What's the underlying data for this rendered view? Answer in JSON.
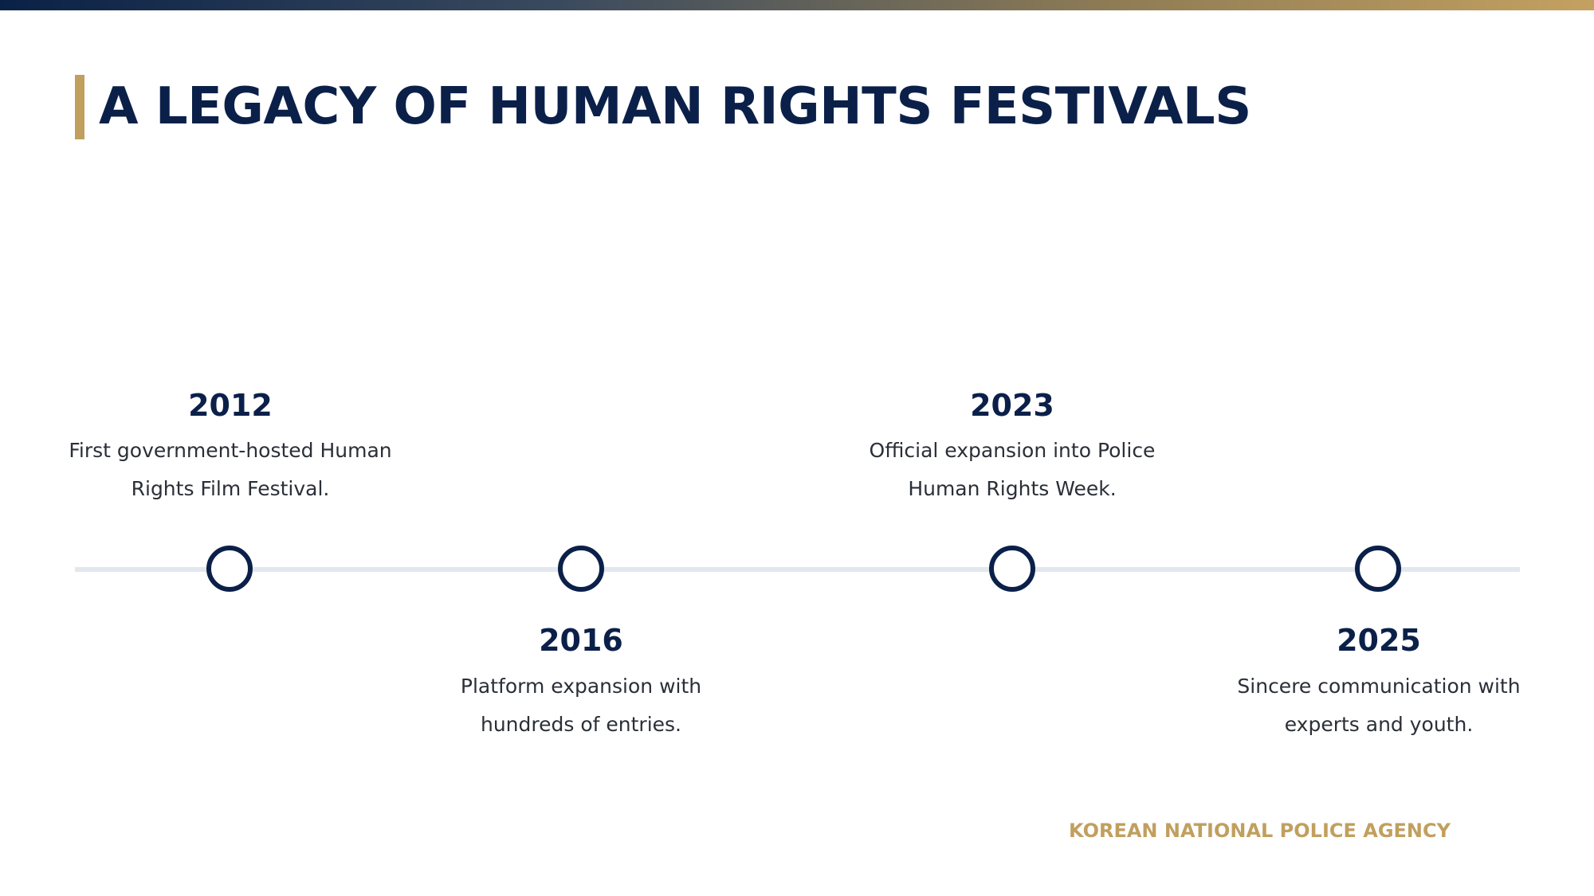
{
  "slide": {
    "title": "A LEGACY OF HUMAN RIGHTS FESTIVALS",
    "footer": "KOREAN NATIONAL POLICE AGENCY"
  },
  "colors": {
    "navy": "#0b2049",
    "gold": "#c19f5e",
    "line": "#e3e7ee"
  },
  "milestones": [
    {
      "year": "2012",
      "line1": "First government-hosted Human",
      "line2": "Rights Film Festival."
    },
    {
      "year": "2016",
      "line1": "Platform expansion with",
      "line2": "hundreds of entries."
    },
    {
      "year": "2023",
      "line1": "Official expansion into Police",
      "line2": "Human Rights Week."
    },
    {
      "year": "2025",
      "line1": "Sincere communication with",
      "line2": "experts and youth."
    }
  ]
}
